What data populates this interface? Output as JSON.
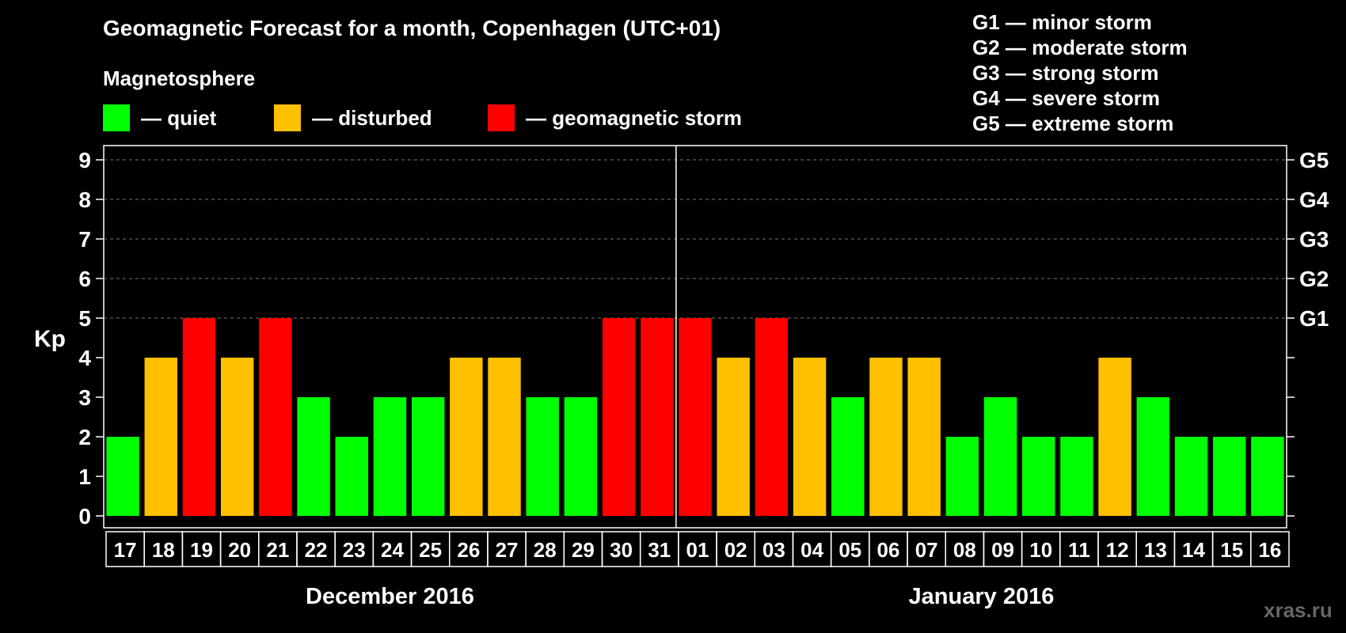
{
  "title": "Geomagnetic Forecast for a month, Copenhagen (UTC+01)",
  "legend": {
    "heading": "Magnetosphere",
    "items": [
      {
        "label": "— quiet",
        "color": "#00ff00"
      },
      {
        "label": "— disturbed",
        "color": "#ffc000"
      },
      {
        "label": "— geomagnetic storm",
        "color": "#ff0000"
      }
    ]
  },
  "g_levels": [
    "G1 — minor storm",
    "G2 — moderate storm",
    "G3 — strong storm",
    "G4 — severe storm",
    "G5 — extreme storm"
  ],
  "watermark": "xras.ru",
  "chart_data": {
    "type": "bar",
    "ylabel": "Kp",
    "ylim": [
      0,
      9
    ],
    "yticks": [
      0,
      1,
      2,
      3,
      4,
      5,
      6,
      7,
      8,
      9
    ],
    "right_axis_labels": [
      {
        "value": 5,
        "label": "G1"
      },
      {
        "value": 6,
        "label": "G2"
      },
      {
        "value": 7,
        "label": "G3"
      },
      {
        "value": 8,
        "label": "G4"
      },
      {
        "value": 9,
        "label": "G5"
      }
    ],
    "grid": "dashed horizontal at 5–9",
    "categories": [
      "17",
      "18",
      "19",
      "20",
      "21",
      "22",
      "23",
      "24",
      "25",
      "26",
      "27",
      "28",
      "29",
      "30",
      "31",
      "01",
      "02",
      "03",
      "04",
      "05",
      "06",
      "07",
      "08",
      "09",
      "10",
      "11",
      "12",
      "13",
      "14",
      "15",
      "16"
    ],
    "values": [
      2,
      4,
      5,
      4,
      5,
      3,
      2,
      3,
      3,
      4,
      4,
      3,
      3,
      5,
      5,
      5,
      4,
      5,
      4,
      3,
      4,
      4,
      2,
      3,
      2,
      2,
      4,
      3,
      2,
      2,
      2
    ],
    "month_labels": [
      {
        "label": "December 2016",
        "start_index": 0,
        "end_index": 14
      },
      {
        "label": "January 2016",
        "start_index": 15,
        "end_index": 30
      }
    ],
    "colors": {
      "quiet": "#00ff00",
      "disturbed": "#ffc000",
      "storm": "#ff0000"
    },
    "thresholds": {
      "disturbed": 4,
      "storm": 5
    }
  }
}
